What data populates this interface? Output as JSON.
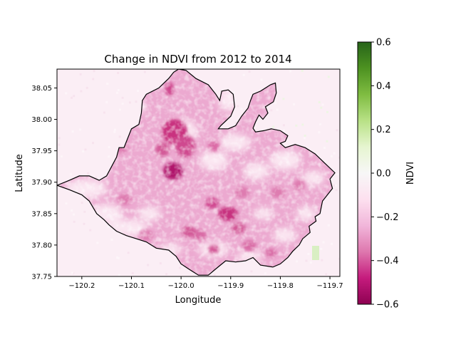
{
  "chart_data": {
    "type": "heatmap",
    "title": "Change in NDVI from 2012 to 2014",
    "xlabel": "Longitude",
    "ylabel": "Latitude",
    "xlim": [
      -120.25,
      -119.68
    ],
    "ylim": [
      37.75,
      38.08
    ],
    "x_ticks": [
      -120.2,
      -120.1,
      -120.0,
      -119.9,
      -119.8,
      -119.7
    ],
    "x_tick_labels": [
      "−120.2",
      "−120.1",
      "−120.0",
      "−119.9",
      "−119.8",
      "−119.7"
    ],
    "y_ticks": [
      37.75,
      37.8,
      37.85,
      37.9,
      37.95,
      38.0,
      38.05
    ],
    "y_tick_labels": [
      "37.75",
      "37.80",
      "37.85",
      "37.90",
      "37.95",
      "38.00",
      "38.05"
    ],
    "colorbar": {
      "label": "NDVI",
      "vmin": -0.6,
      "vmax": 0.6,
      "colormap": "PiYG",
      "ticks": [
        -0.6,
        -0.4,
        -0.2,
        0.0,
        0.2,
        0.4,
        0.6
      ],
      "tick_labels": [
        "−0.6",
        "−0.4",
        "−0.2",
        "0.0",
        "0.2",
        "0.4",
        "0.6"
      ]
    },
    "boundary_lonlat": [
      [
        -120.25,
        37.895
      ],
      [
        -120.225,
        37.903
      ],
      [
        -120.205,
        37.91
      ],
      [
        -120.185,
        37.91
      ],
      [
        -120.165,
        37.903
      ],
      [
        -120.15,
        37.91
      ],
      [
        -120.13,
        37.94
      ],
      [
        -120.125,
        37.955
      ],
      [
        -120.115,
        37.955
      ],
      [
        -120.105,
        37.975
      ],
      [
        -120.1,
        37.985
      ],
      [
        -120.085,
        37.992
      ],
      [
        -120.08,
        38.01
      ],
      [
        -120.078,
        38.03
      ],
      [
        -120.07,
        38.04
      ],
      [
        -120.045,
        38.05
      ],
      [
        -120.025,
        38.065
      ],
      [
        -120.015,
        38.075
      ],
      [
        -120.005,
        38.08
      ],
      [
        -119.99,
        38.078
      ],
      [
        -119.97,
        38.065
      ],
      [
        -119.945,
        38.055
      ],
      [
        -119.93,
        38.04
      ],
      [
        -119.922,
        38.03
      ],
      [
        -119.918,
        38.045
      ],
      [
        -119.905,
        38.047
      ],
      [
        -119.895,
        38.04
      ],
      [
        -119.892,
        38.02
      ],
      [
        -119.9,
        38.005
      ],
      [
        -119.92,
        37.99
      ],
      [
        -119.925,
        37.985
      ],
      [
        -119.905,
        37.985
      ],
      [
        -119.89,
        37.99
      ],
      [
        -119.878,
        38.005
      ],
      [
        -119.865,
        38.018
      ],
      [
        -119.86,
        38.03
      ],
      [
        -119.855,
        38.04
      ],
      [
        -119.84,
        38.045
      ],
      [
        -119.83,
        38.05
      ],
      [
        -119.82,
        38.055
      ],
      [
        -119.81,
        38.058
      ],
      [
        -119.808,
        38.042
      ],
      [
        -119.814,
        38.028
      ],
      [
        -119.83,
        38.02
      ],
      [
        -119.825,
        38.01
      ],
      [
        -119.835,
        38.0
      ],
      [
        -119.843,
        38.007
      ],
      [
        -119.85,
        37.996
      ],
      [
        -119.855,
        37.986
      ],
      [
        -119.85,
        37.98
      ],
      [
        -119.833,
        37.982
      ],
      [
        -119.818,
        37.985
      ],
      [
        -119.8,
        37.982
      ],
      [
        -119.785,
        37.974
      ],
      [
        -119.79,
        37.965
      ],
      [
        -119.8,
        37.962
      ],
      [
        -119.79,
        37.955
      ],
      [
        -119.77,
        37.96
      ],
      [
        -119.75,
        37.955
      ],
      [
        -119.73,
        37.945
      ],
      [
        -119.71,
        37.93
      ],
      [
        -119.69,
        37.915
      ],
      [
        -119.7,
        37.905
      ],
      [
        -119.695,
        37.89
      ],
      [
        -119.715,
        37.87
      ],
      [
        -119.72,
        37.85
      ],
      [
        -119.73,
        37.845
      ],
      [
        -119.728,
        37.838
      ],
      [
        -119.742,
        37.83
      ],
      [
        -119.74,
        37.82
      ],
      [
        -119.755,
        37.81
      ],
      [
        -119.762,
        37.8
      ],
      [
        -119.775,
        37.79
      ],
      [
        -119.785,
        37.78
      ],
      [
        -119.8,
        37.77
      ],
      [
        -119.815,
        37.765
      ],
      [
        -119.84,
        37.768
      ],
      [
        -119.855,
        37.78
      ],
      [
        -119.87,
        37.775
      ],
      [
        -119.89,
        37.773
      ],
      [
        -119.91,
        37.775
      ],
      [
        -119.93,
        37.762
      ],
      [
        -119.945,
        37.752
      ],
      [
        -119.965,
        37.752
      ],
      [
        -119.985,
        37.762
      ],
      [
        -120.0,
        37.77
      ],
      [
        -120.01,
        37.782
      ],
      [
        -120.025,
        37.792
      ],
      [
        -120.05,
        37.795
      ],
      [
        -120.07,
        37.805
      ],
      [
        -120.09,
        37.81
      ],
      [
        -120.11,
        37.815
      ],
      [
        -120.13,
        37.822
      ],
      [
        -120.145,
        37.832
      ],
      [
        -120.155,
        37.84
      ],
      [
        -120.17,
        37.85
      ],
      [
        -120.185,
        37.87
      ],
      [
        -120.2,
        37.88
      ],
      [
        -120.225,
        37.888
      ],
      [
        -120.25,
        37.895
      ]
    ],
    "colorbar_label": "NDVI"
  }
}
